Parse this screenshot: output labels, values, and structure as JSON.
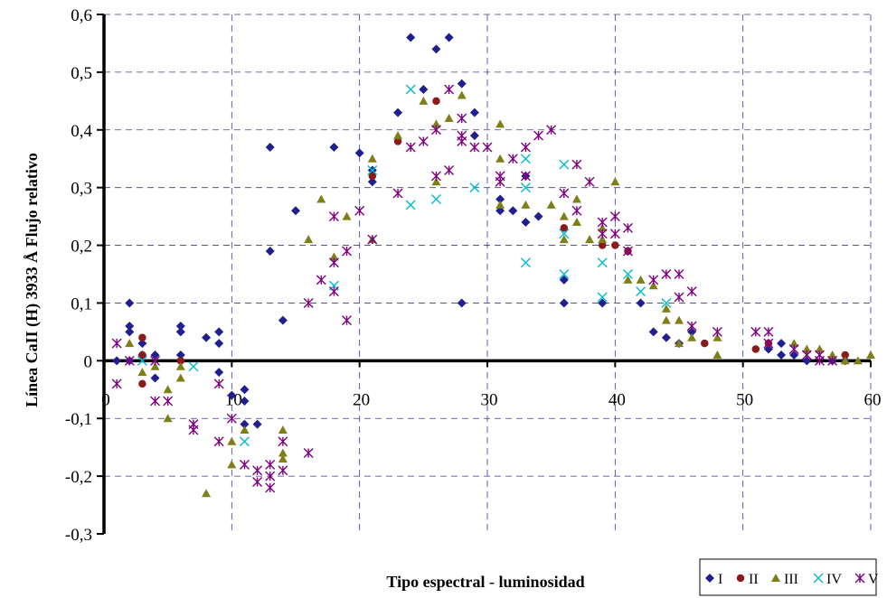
{
  "chart_data": {
    "type": "scatter",
    "title": "",
    "xlabel": "Tipo espectral - luminosidad",
    "ylabel": "Línea CaII (H) 3933 Å Flujo relativo",
    "xlim": [
      0,
      60
    ],
    "ylim": [
      -0.3,
      0.6
    ],
    "x_ticks": [
      0,
      10,
      20,
      30,
      40,
      50,
      60
    ],
    "x_tick_labels": [
      "0",
      "10",
      "20",
      "30",
      "40",
      "50",
      "60"
    ],
    "y_ticks": [
      -0.3,
      -0.2,
      -0.1,
      0,
      0.1,
      0.2,
      0.3,
      0.4,
      0.5,
      0.6
    ],
    "y_tick_labels": [
      "-0,3",
      "-0,2",
      "-0,1",
      "0",
      "0,1",
      "0,2",
      "0,3",
      "0,4",
      "0,5",
      "0,6"
    ],
    "grid": "dashed",
    "legend_position": "bottom-right",
    "series": [
      {
        "name": "I",
        "marker": "diamond",
        "color": "#1f1f8f",
        "points": [
          [
            1,
            0
          ],
          [
            2,
            0.1
          ],
          [
            2,
            0.06
          ],
          [
            2,
            0.05
          ],
          [
            2,
            0
          ],
          [
            3,
            0.03
          ],
          [
            3,
            0.01
          ],
          [
            4,
            0.01
          ],
          [
            4,
            -0.03
          ],
          [
            6,
            0.06
          ],
          [
            6,
            0.05
          ],
          [
            6,
            0.01
          ],
          [
            8,
            0.04
          ],
          [
            9,
            0.05
          ],
          [
            9,
            0.03
          ],
          [
            9,
            -0.02
          ],
          [
            10,
            -0.06
          ],
          [
            11,
            -0.05
          ],
          [
            11,
            -0.07
          ],
          [
            11,
            -0.11
          ],
          [
            12,
            -0.11
          ],
          [
            13,
            0.37
          ],
          [
            13,
            0.19
          ],
          [
            14,
            0.07
          ],
          [
            15,
            0.26
          ],
          [
            18,
            0.37
          ],
          [
            20,
            0.36
          ],
          [
            21,
            0.33
          ],
          [
            21,
            0.31
          ],
          [
            23,
            0.43
          ],
          [
            24,
            0.56
          ],
          [
            25,
            0.47
          ],
          [
            26,
            0.54
          ],
          [
            27,
            0.56
          ],
          [
            28,
            0.48
          ],
          [
            28,
            0.1
          ],
          [
            29,
            0.43
          ],
          [
            29,
            0.39
          ],
          [
            31,
            0.28
          ],
          [
            31,
            0.26
          ],
          [
            32,
            0.26
          ],
          [
            33,
            0.32
          ],
          [
            33,
            0.24
          ],
          [
            34,
            0.25
          ],
          [
            36,
            0.14
          ],
          [
            36,
            0.1
          ],
          [
            39,
            0.1
          ],
          [
            42,
            0.1
          ],
          [
            43,
            0.05
          ],
          [
            44,
            0.04
          ],
          [
            45,
            0.03
          ],
          [
            46,
            0.05
          ],
          [
            52,
            0.02
          ],
          [
            53,
            0.03
          ],
          [
            53,
            0.01
          ],
          [
            54,
            0.01
          ],
          [
            55,
            0
          ],
          [
            57,
            0
          ],
          [
            58,
            0
          ]
        ]
      },
      {
        "name": "II",
        "marker": "circle",
        "color": "#8b1a1a",
        "points": [
          [
            3,
            0.04
          ],
          [
            3,
            -0.04
          ],
          [
            3,
            0.01
          ],
          [
            6,
            0
          ],
          [
            21,
            0.32
          ],
          [
            23,
            0.38
          ],
          [
            26,
            0.45
          ],
          [
            36,
            0.23
          ],
          [
            39,
            0.2
          ],
          [
            40,
            0.2
          ],
          [
            41,
            0.19
          ],
          [
            47,
            0.03
          ],
          [
            51,
            0.02
          ],
          [
            52,
            0.03
          ],
          [
            58,
            0.01
          ]
        ]
      },
      {
        "name": "III",
        "marker": "triangle",
        "color": "#7f7f1a",
        "points": [
          [
            2,
            0.03
          ],
          [
            3,
            -0.02
          ],
          [
            4,
            -0.01
          ],
          [
            5,
            -0.05
          ],
          [
            5,
            -0.1
          ],
          [
            6,
            -0.01
          ],
          [
            6,
            -0.03
          ],
          [
            8,
            -0.23
          ],
          [
            10,
            -0.14
          ],
          [
            10,
            -0.18
          ],
          [
            11,
            -0.12
          ],
          [
            14,
            -0.12
          ],
          [
            14,
            -0.16
          ],
          [
            14,
            -0.17
          ],
          [
            16,
            0.21
          ],
          [
            17,
            0.28
          ],
          [
            18,
            0.18
          ],
          [
            19,
            0.25
          ],
          [
            21,
            0.35
          ],
          [
            21,
            0.21
          ],
          [
            23,
            0.39
          ],
          [
            25,
            0.45
          ],
          [
            26,
            0.41
          ],
          [
            26,
            0.31
          ],
          [
            27,
            0.42
          ],
          [
            28,
            0.46
          ],
          [
            31,
            0.41
          ],
          [
            31,
            0.35
          ],
          [
            31,
            0.27
          ],
          [
            33,
            0.27
          ],
          [
            35,
            0.27
          ],
          [
            36,
            0.25
          ],
          [
            36,
            0.21
          ],
          [
            37,
            0.28
          ],
          [
            37,
            0.24
          ],
          [
            38,
            0.21
          ],
          [
            39,
            0.23
          ],
          [
            39,
            0.21
          ],
          [
            40,
            0.31
          ],
          [
            41,
            0.14
          ],
          [
            42,
            0.14
          ],
          [
            43,
            0.13
          ],
          [
            44,
            0.09
          ],
          [
            44,
            0.07
          ],
          [
            45,
            0.07
          ],
          [
            45,
            0.03
          ],
          [
            46,
            0.04
          ],
          [
            48,
            0.04
          ],
          [
            48,
            0.01
          ],
          [
            54,
            0.03
          ],
          [
            55,
            0.02
          ],
          [
            56,
            0.02
          ],
          [
            57,
            0.01
          ],
          [
            58,
            0
          ],
          [
            59,
            0
          ],
          [
            60,
            0.01
          ]
        ]
      },
      {
        "name": "IV",
        "marker": "x",
        "color": "#00bcd4",
        "points": [
          [
            3,
            0
          ],
          [
            7,
            -0.01
          ],
          [
            11,
            -0.14
          ],
          [
            18,
            0.13
          ],
          [
            21,
            0.33
          ],
          [
            24,
            0.47
          ],
          [
            24,
            0.27
          ],
          [
            26,
            0.28
          ],
          [
            29,
            0.3
          ],
          [
            33,
            0.35
          ],
          [
            33,
            0.3
          ],
          [
            33,
            0.17
          ],
          [
            36,
            0.34
          ],
          [
            36,
            0.22
          ],
          [
            36,
            0.15
          ],
          [
            39,
            0.17
          ],
          [
            39,
            0.11
          ],
          [
            41,
            0.15
          ],
          [
            42,
            0.12
          ],
          [
            44,
            0.1
          ]
        ]
      },
      {
        "name": "V",
        "marker": "asterisk",
        "color": "#800080",
        "points": [
          [
            1,
            0.03
          ],
          [
            1,
            -0.04
          ],
          [
            2,
            0
          ],
          [
            4,
            0
          ],
          [
            4,
            -0.07
          ],
          [
            5,
            -0.07
          ],
          [
            7,
            -0.11
          ],
          [
            7,
            -0.12
          ],
          [
            9,
            -0.04
          ],
          [
            9,
            -0.14
          ],
          [
            10,
            -0.1
          ],
          [
            11,
            -0.18
          ],
          [
            12,
            -0.19
          ],
          [
            12,
            -0.21
          ],
          [
            13,
            -0.18
          ],
          [
            13,
            -0.2
          ],
          [
            13,
            -0.22
          ],
          [
            14,
            -0.14
          ],
          [
            14,
            -0.19
          ],
          [
            16,
            -0.16
          ],
          [
            16,
            0.1
          ],
          [
            17,
            0.14
          ],
          [
            18,
            0.25
          ],
          [
            18,
            0.17
          ],
          [
            18,
            0.12
          ],
          [
            19,
            0.19
          ],
          [
            19,
            0.07
          ],
          [
            20,
            0.26
          ],
          [
            21,
            0.21
          ],
          [
            23,
            0.29
          ],
          [
            24,
            0.37
          ],
          [
            25,
            0.38
          ],
          [
            26,
            0.4
          ],
          [
            26,
            0.32
          ],
          [
            27,
            0.47
          ],
          [
            27,
            0.33
          ],
          [
            28,
            0.42
          ],
          [
            28,
            0.39
          ],
          [
            28,
            0.38
          ],
          [
            29,
            0.37
          ],
          [
            30,
            0.37
          ],
          [
            31,
            0.32
          ],
          [
            31,
            0.31
          ],
          [
            32,
            0.35
          ],
          [
            33,
            0.37
          ],
          [
            33,
            0.32
          ],
          [
            34,
            0.39
          ],
          [
            35,
            0.4
          ],
          [
            36,
            0.29
          ],
          [
            37,
            0.34
          ],
          [
            37,
            0.26
          ],
          [
            38,
            0.31
          ],
          [
            39,
            0.24
          ],
          [
            39,
            0.22
          ],
          [
            40,
            0.25
          ],
          [
            40,
            0.22
          ],
          [
            41,
            0.23
          ],
          [
            41,
            0.19
          ],
          [
            43,
            0.14
          ],
          [
            44,
            0.15
          ],
          [
            45,
            0.15
          ],
          [
            45,
            0.11
          ],
          [
            46,
            0.12
          ],
          [
            46,
            0.06
          ],
          [
            48,
            0.05
          ],
          [
            51,
            0.05
          ],
          [
            52,
            0.05
          ],
          [
            52,
            0.03
          ],
          [
            54,
            0.02
          ],
          [
            55,
            0.01
          ],
          [
            56,
            0.01
          ],
          [
            56,
            0
          ],
          [
            57,
            0
          ]
        ]
      }
    ]
  }
}
